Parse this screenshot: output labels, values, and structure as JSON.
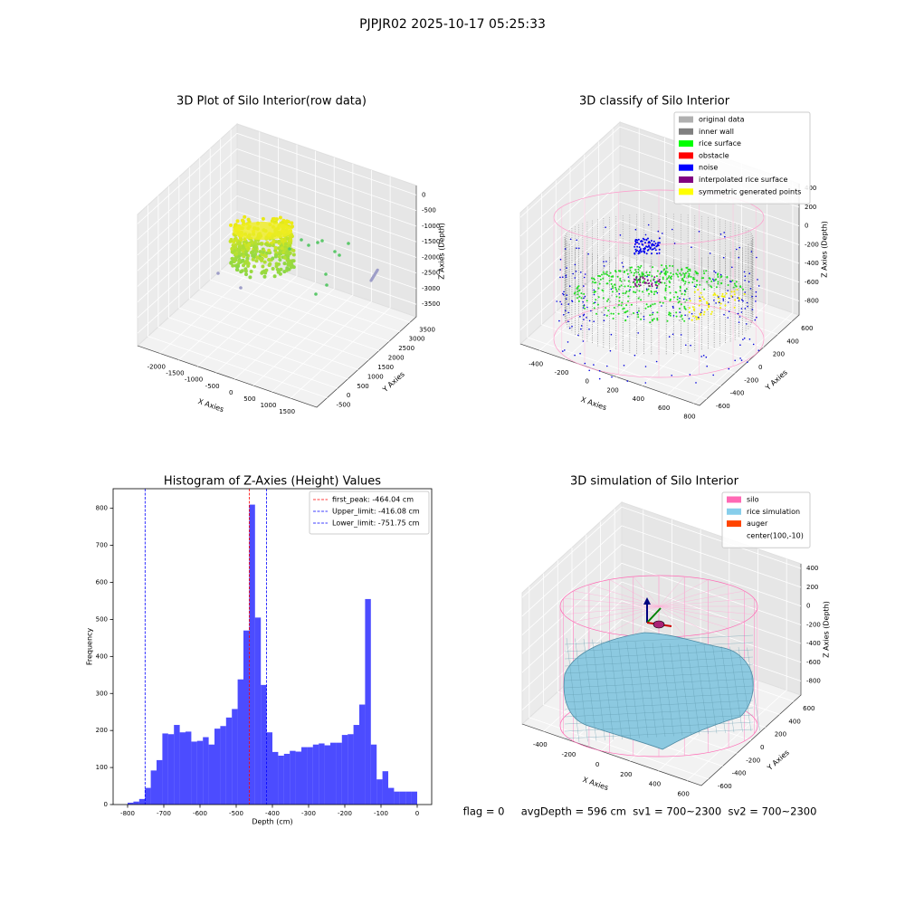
{
  "title": "PJPJR02 2025-10-17 05:25:33",
  "footer": "flag = 0     avgDepth = 596 cm  sv1 = 700~2300  sv2 = 700~2300",
  "chart_data": [
    {
      "type": "scatter3d",
      "title": "3D Plot of Silo Interior(row data)",
      "xlabel": "X Axies",
      "ylabel": "Y Axies",
      "zlabel": "Z Axies (Depth)",
      "xlim": [
        -2600,
        2200
      ],
      "ylim": [
        -1000,
        3800
      ],
      "zlim": [
        -3900,
        300
      ],
      "xticks": [
        -2000,
        -1500,
        -1000,
        -500,
        0,
        500,
        1000,
        1500
      ],
      "yticks": [
        -500,
        0,
        500,
        1000,
        1500,
        2000,
        2500,
        3000,
        3500
      ],
      "zticks": [
        0,
        -500,
        -1000,
        -1500,
        -2000,
        -2500,
        -3000,
        -3500
      ],
      "grid": true
    },
    {
      "type": "scatter3d",
      "title": "3D classify of Silo Interior",
      "xlabel": "X Axies",
      "ylabel": "Y Axies",
      "zlabel": "Z Axies (Depth)",
      "xlim": [
        -550,
        850
      ],
      "ylim": [
        -700,
        700
      ],
      "zlim": [
        -950,
        450
      ],
      "xticks": [
        -400,
        -200,
        0,
        200,
        400,
        600,
        800
      ],
      "yticks": [
        -600,
        -400,
        -200,
        0,
        200,
        400,
        600
      ],
      "zticks": [
        400,
        200,
        0,
        -200,
        -400,
        -600,
        -800
      ],
      "grid": true,
      "legend": "upper right",
      "series": [
        {
          "name": "original data",
          "color": "#b0b0b0"
        },
        {
          "name": "inner wall",
          "color": "#808080"
        },
        {
          "name": "rice surface",
          "color": "#00ff00"
        },
        {
          "name": "obstacle",
          "color": "#ff0000"
        },
        {
          "name": "noise",
          "color": "#0000ff"
        },
        {
          "name": "interpolated rice surface",
          "color": "#800080"
        },
        {
          "name": "symmetric generated points",
          "color": "#ffff00"
        }
      ]
    },
    {
      "type": "histogram",
      "title": "Histogram of Z-Axies (Height) Values",
      "xlabel": "Depth (cm)",
      "ylabel": "Frequency",
      "color": "#0000ff",
      "alpha": 0.7,
      "bins": [
        -800,
        -784,
        -768,
        -752,
        -736,
        -720,
        -704,
        -688,
        -672,
        -656,
        -640,
        -624,
        -608,
        -592,
        -576,
        -560,
        -544,
        -528,
        -512,
        -496,
        -480,
        -464,
        -448,
        -432,
        -416,
        -400,
        -384,
        -368,
        -352,
        -336,
        -320,
        -304,
        -288,
        -272,
        -256,
        -240,
        -224,
        -208,
        -192,
        -176,
        -160,
        -144,
        -128,
        -112,
        -96,
        -80,
        -64,
        -48,
        -32,
        -16,
        0
      ],
      "values": [
        5,
        8,
        15,
        45,
        92,
        120,
        192,
        190,
        215,
        195,
        197,
        170,
        172,
        182,
        162,
        205,
        212,
        235,
        258,
        338,
        470,
        810,
        505,
        323,
        195,
        142,
        132,
        137,
        145,
        143,
        155,
        155,
        162,
        165,
        160,
        167,
        167,
        188,
        190,
        215,
        270,
        555,
        162,
        68,
        90,
        45,
        35,
        35,
        35,
        35
      ],
      "xlim": [
        -840,
        40
      ],
      "ylim": [
        0,
        853
      ],
      "xticks": [
        -800,
        -700,
        -600,
        -500,
        -400,
        -300,
        -200,
        -100,
        0
      ],
      "yticks": [
        0,
        100,
        200,
        300,
        400,
        500,
        600,
        700,
        800
      ],
      "lines": [
        {
          "name": "first_peak: -464.04 cm",
          "value": -464.04,
          "color": "#ff0000"
        },
        {
          "name": "Upper_limit: -416.08 cm",
          "value": -416.08,
          "color": "#0000ff"
        },
        {
          "name": "Lower_limit: -751.75 cm",
          "value": -751.75,
          "color": "#0000ff"
        }
      ],
      "legend": "upper right"
    },
    {
      "type": "surface3d",
      "title": "3D simulation of Silo Interior",
      "xlabel": "X Axies",
      "ylabel": "Y Axies",
      "zlabel": "Z Axies (Depth)",
      "xlim": [
        -550,
        700
      ],
      "ylim": [
        -700,
        700
      ],
      "zlim": [
        -950,
        450
      ],
      "xticks": [
        -400,
        -200,
        0,
        200,
        400,
        600
      ],
      "yticks": [
        -600,
        -400,
        -200,
        0,
        200,
        400,
        600
      ],
      "zticks": [
        400,
        200,
        0,
        -200,
        -400,
        -600,
        -800
      ],
      "grid": true,
      "legend": "upper right",
      "series": [
        {
          "name": "silo",
          "color": "#ff69b4"
        },
        {
          "name": "rice simulation",
          "color": "#87ceeb"
        },
        {
          "name": "auger",
          "color": "#ff4500"
        },
        {
          "name": "center(100,-10)"
        }
      ]
    }
  ]
}
